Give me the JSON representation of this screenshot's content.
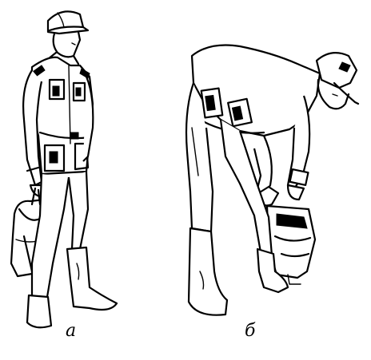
{
  "captions": {
    "left": "а",
    "right": "б"
  },
  "colors": {
    "ink": "#000000",
    "paper": "#ffffff"
  }
}
